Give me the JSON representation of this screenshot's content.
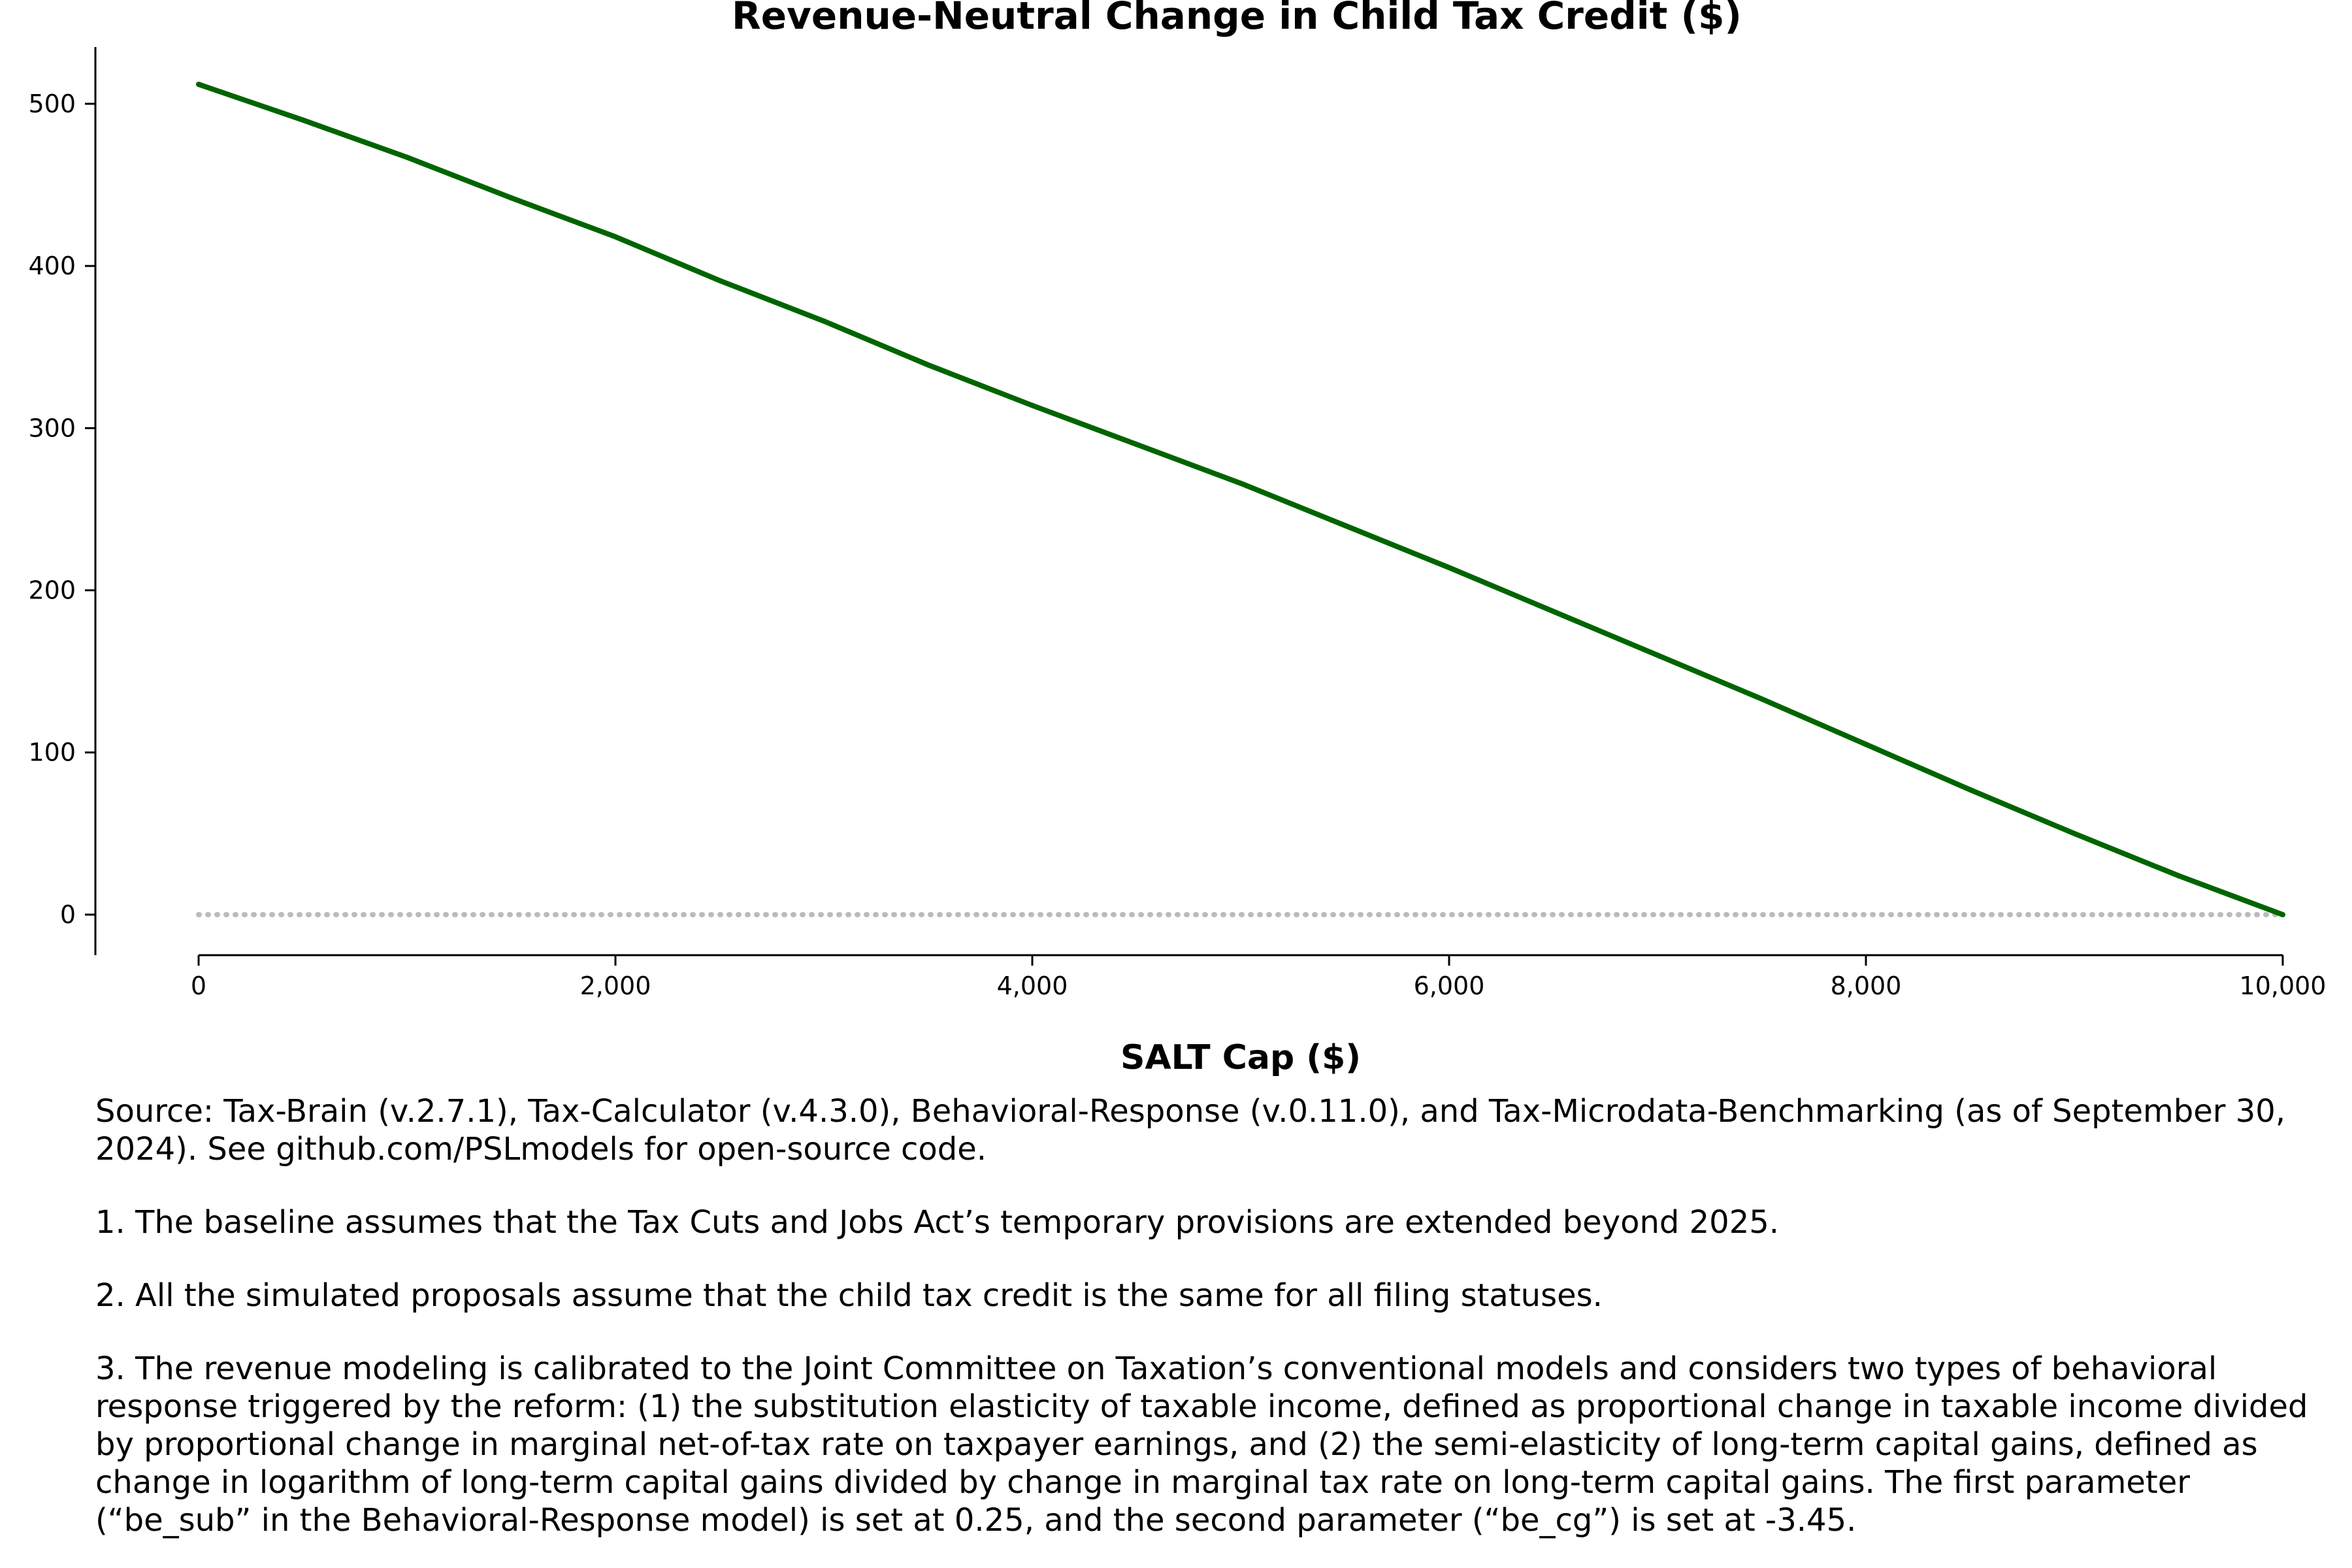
{
  "chart_data": {
    "type": "line",
    "title": "Revenue-Neutral Change in Child Tax Credit ($)",
    "xlabel": "SALT Cap ($)",
    "ylabel": "",
    "xlim": [
      0,
      10000
    ],
    "ylim": [
      -25,
      535
    ],
    "x_ticks": [
      0,
      2000,
      4000,
      6000,
      8000,
      10000
    ],
    "x_tick_labels": [
      "0",
      "2,000",
      "4,000",
      "6,000",
      "8,000",
      "10,000"
    ],
    "y_ticks": [
      0,
      100,
      200,
      300,
      400,
      500
    ],
    "y_tick_labels": [
      "0",
      "100",
      "200",
      "300",
      "400",
      "500"
    ],
    "grid": false,
    "legend": "none",
    "series": [
      {
        "color": "#006400",
        "style": "solid",
        "x": [
          0,
          500,
          1000,
          1500,
          2000,
          2500,
          3000,
          3500,
          4000,
          4500,
          5000,
          5500,
          6000,
          6500,
          7000,
          7500,
          8000,
          8500,
          9000,
          9500,
          10000
        ],
        "values": [
          512,
          490,
          467,
          442,
          418,
          391,
          366,
          339,
          314,
          290,
          266,
          240,
          214,
          187,
          160,
          133,
          105,
          77,
          50,
          24,
          0
        ]
      }
    ],
    "reference_line": {
      "y": 0,
      "color": "#bbbbbb",
      "style": "dotted"
    }
  },
  "notes": {
    "source": "Source: Tax-Brain (v.2.7.1), Tax-Calculator (v.4.3.0), Behavioral-Response (v.0.11.0), and Tax-Microdata-Benchmarking (as of September 30, 2024). See github.com/PSLmodels for open-source code.",
    "note1": "1. The baseline assumes that the Tax Cuts and Jobs Act’s temporary provisions are extended beyond 2025.",
    "note2": "2. All the simulated proposals assume that the child tax credit is the same for all filing statuses.",
    "note3": "3. The revenue modeling is calibrated to the Joint Committee on Taxation’s conventional models and considers two types of behavioral response triggered by the reform: (1) the substitution elasticity of taxable income, defined as proportional change in taxable income divided by proportional change in marginal net-of-tax rate on taxpayer earnings, and (2) the semi-elasticity of long-term capital gains, defined as change in logarithm of long-term capital gains divided by change in marginal tax rate on long-term capital gains. The first parameter (“be_sub” in the Behavioral-Response model) is set at 0.25, and the second parameter (“be_cg”) is set at -3.45."
  }
}
